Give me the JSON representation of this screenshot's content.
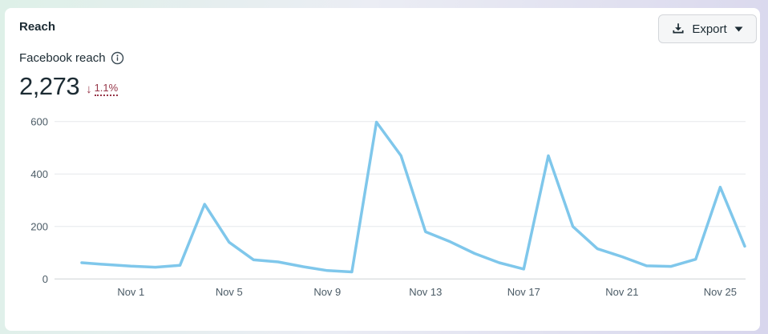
{
  "header": {
    "title": "Reach"
  },
  "toolbar": {
    "export_label": "Export"
  },
  "metric": {
    "label": "Facebook reach",
    "value": "2,273",
    "trend_arrow": "↓",
    "trend_direction": "down",
    "trend_value": "1.1%"
  },
  "colors": {
    "line": "#7fc7eb",
    "negative": "#963548",
    "grid": "#e6e8eb",
    "zero_line": "#ced2d6",
    "axis_text": "#4b5b66",
    "title_text": "#1c2b33"
  },
  "chart_data": {
    "type": "line",
    "title": "Facebook reach",
    "x": [
      "Oct 30",
      "Oct 31",
      "Nov 1",
      "Nov 2",
      "Nov 3",
      "Nov 4",
      "Nov 5",
      "Nov 6",
      "Nov 7",
      "Nov 8",
      "Nov 9",
      "Nov 10",
      "Nov 11",
      "Nov 12",
      "Nov 13",
      "Nov 14",
      "Nov 15",
      "Nov 16",
      "Nov 17",
      "Nov 18",
      "Nov 19",
      "Nov 20",
      "Nov 21",
      "Nov 22",
      "Nov 23",
      "Nov 24",
      "Nov 25",
      "Nov 26"
    ],
    "series": [
      {
        "name": "Facebook reach",
        "color": "#7fc7eb",
        "values": [
          62,
          55,
          49,
          45,
          52,
          285,
          140,
          73,
          65,
          47,
          32,
          27,
          598,
          470,
          180,
          142,
          97,
          62,
          38,
          470,
          200,
          115,
          85,
          50,
          48,
          75,
          350,
          125
        ]
      }
    ],
    "x_tick_labels": [
      "Nov 1",
      "Nov 5",
      "Nov 9",
      "Nov 13",
      "Nov 17",
      "Nov 21",
      "Nov 25"
    ],
    "y_ticks": [
      0,
      200,
      400,
      600
    ],
    "ylim": [
      0,
      650
    ],
    "xlabel": "",
    "ylabel": "",
    "grid": "horizontal",
    "legend": "none"
  }
}
